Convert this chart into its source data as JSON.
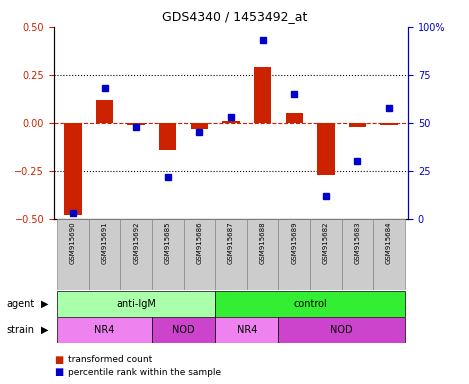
{
  "title": "GDS4340 / 1453492_at",
  "samples": [
    "GSM915690",
    "GSM915691",
    "GSM915692",
    "GSM915685",
    "GSM915686",
    "GSM915687",
    "GSM915688",
    "GSM915689",
    "GSM915682",
    "GSM915683",
    "GSM915684"
  ],
  "red_values": [
    -0.48,
    0.12,
    -0.01,
    -0.14,
    -0.03,
    0.01,
    0.29,
    0.05,
    -0.27,
    -0.02,
    -0.01
  ],
  "blue_values": [
    3,
    68,
    48,
    22,
    45,
    53,
    93,
    65,
    12,
    30,
    58
  ],
  "ylim_left": [
    -0.5,
    0.5
  ],
  "ylim_right": [
    0,
    100
  ],
  "yticks_left": [
    -0.5,
    -0.25,
    0,
    0.25,
    0.5
  ],
  "yticks_right": [
    0,
    25,
    50,
    75,
    100
  ],
  "agent_groups": [
    {
      "label": "anti-IgM",
      "start": 0,
      "end": 5,
      "color": "#aaffaa"
    },
    {
      "label": "control",
      "start": 5,
      "end": 11,
      "color": "#33ee33"
    }
  ],
  "strain_groups": [
    {
      "label": "NR4",
      "start": 0,
      "end": 3,
      "color": "#ee82ee"
    },
    {
      "label": "NOD",
      "start": 3,
      "end": 5,
      "color": "#cc44cc"
    },
    {
      "label": "NR4",
      "start": 5,
      "end": 7,
      "color": "#ee82ee"
    },
    {
      "label": "NOD",
      "start": 7,
      "end": 11,
      "color": "#cc44cc"
    }
  ],
  "red_color": "#cc2200",
  "blue_color": "#0000cc",
  "bar_width": 0.55,
  "legend_red_label": "transformed count",
  "legend_blue_label": "percentile rank within the sample",
  "axis_color_left": "#cc2200",
  "axis_color_right": "#0000cc",
  "sample_box_color": "#cccccc",
  "sample_box_edge": "#888888"
}
